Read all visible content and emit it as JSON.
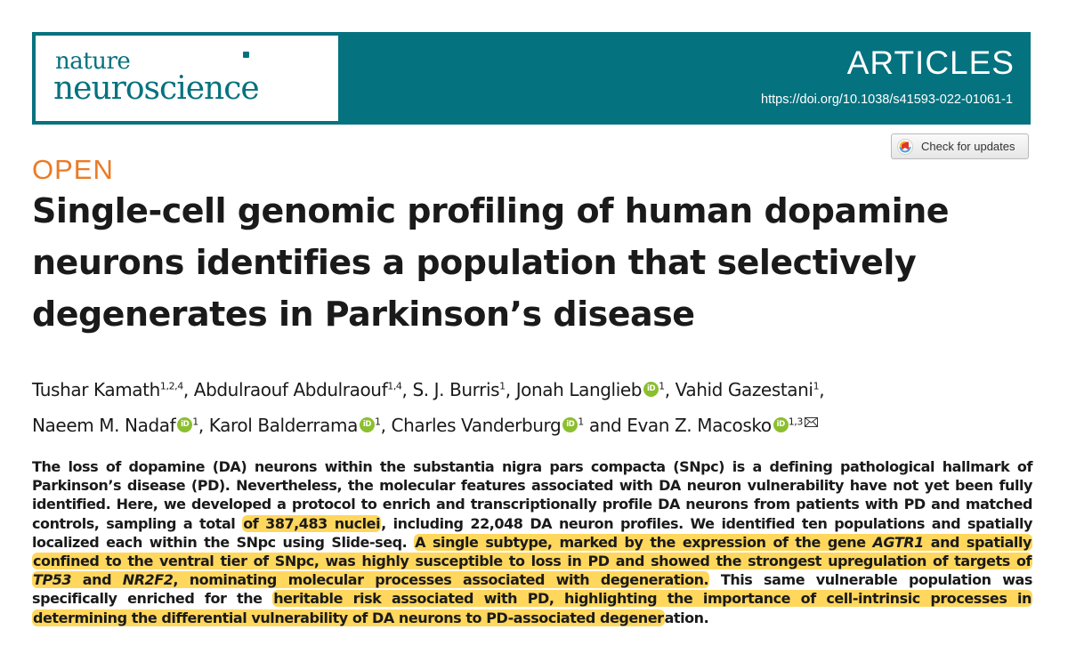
{
  "header": {
    "logo_line1": "nature",
    "logo_line2": "neuroscience",
    "section": "ARTICLES",
    "doi": "https://doi.org/10.1038/s41593-022-01061-1",
    "banner_color": "#05727f"
  },
  "check_updates": {
    "label": "Check for updates",
    "icon": "crossmark-icon"
  },
  "badge": {
    "label": "OPEN",
    "color": "#ea7b25"
  },
  "title": "Single-cell genomic profiling of human dopamine neurons identifies a population that selectively degenerates in Parkinson’s disease",
  "authors": [
    {
      "name": "Tushar Kamath",
      "aff": "1,2,4",
      "orcid": false
    },
    {
      "name": "Abdulraouf Abdulraouf",
      "aff": "1,4",
      "orcid": false
    },
    {
      "name": "S. J. Burris",
      "aff": "1",
      "orcid": false
    },
    {
      "name": "Jonah Langlieb",
      "aff": "1",
      "orcid": true
    },
    {
      "name": "Vahid Gazestani",
      "aff": "1",
      "orcid": false
    },
    {
      "name": "Naeem M. Nadaf",
      "aff": "1",
      "orcid": true
    },
    {
      "name": "Karol Balderrama",
      "aff": "1",
      "orcid": true
    },
    {
      "name": "Charles Vanderburg",
      "aff": "1",
      "orcid": true
    },
    {
      "name": "Evan Z. Macosko",
      "aff": "1,3",
      "orcid": true
    }
  ],
  "author_separators": {
    "comma": ", ",
    "and": " and "
  },
  "orcid_label": "iD",
  "abstract": {
    "p1": "The loss of dopamine (DA) neurons within the substantia nigra pars compacta (SNpc) is a defining pathological hallmark of Parkinson’s disease (PD). Nevertheless, the molecular features associated with DA neuron vulnerability have not yet been fully identified. Here, we developed a protocol to enrich and transcriptionally profile DA neurons from patients with PD and matched controls, sampling a total ",
    "hl1": "of 387,483 nuclei",
    "p2": ", including 22,048 DA neuron profiles. We identified ten populations and spatially localized each within the SNpc using Slide-seq. ",
    "hl2a": "A single subtype, marked by the expression of the gene ",
    "gene1": "AGTR1",
    "hl2b": " and spatially confined to the ventral tier of SNpc, was highly susceptible to loss in PD and showed the strongest upregulation of targets of ",
    "gene2": "TP53",
    "hl2c": " and ",
    "gene3": "NR2F2",
    "hl2d": ", nominating molecular processes associated with degeneration.",
    "p3": " This same vulnerable population was specifically enriched for the ",
    "hl3": "heritable risk associated with PD, highlighting the importance of cell-intrinsic processes in determining the differential vulnerability of DA neurons to PD-associated degener",
    "p4": "ation.",
    "highlight_color": "#ffc81e"
  }
}
